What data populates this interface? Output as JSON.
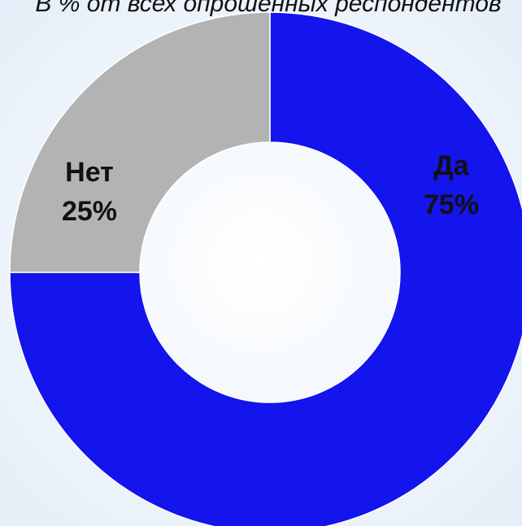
{
  "chart_data": {
    "type": "donut",
    "title": "В % от всех опрошенных респондентов",
    "categories": [
      "Да",
      "Нет"
    ],
    "values": [
      75,
      25
    ],
    "value_labels": [
      "75%",
      "25%"
    ],
    "colors": [
      "#1414ec",
      "#b3b3b3"
    ]
  }
}
